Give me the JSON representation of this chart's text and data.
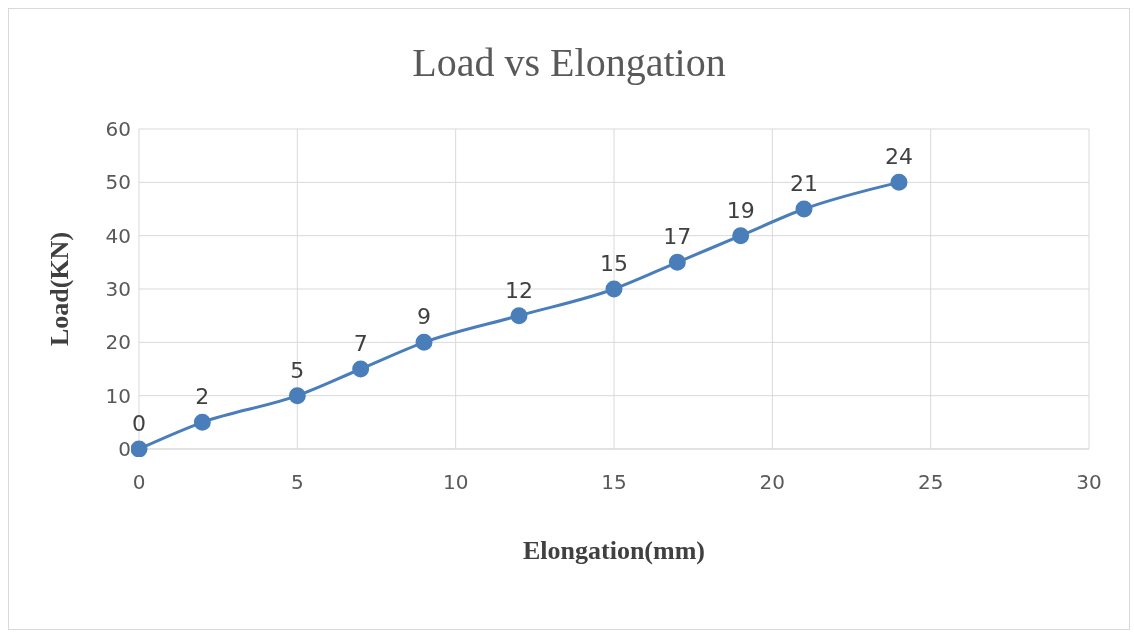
{
  "chart_data": {
    "type": "line",
    "title": "Load vs Elongation",
    "xlabel": "Elongation(mm)",
    "ylabel": "Load(KN)",
    "x": [
      0,
      2,
      5,
      7,
      9,
      12,
      15,
      17,
      19,
      21,
      24
    ],
    "values": [
      0,
      5,
      10,
      15,
      20,
      25,
      30,
      35,
      40,
      45,
      50
    ],
    "annotations": [
      {
        "text": "0",
        "x": 0,
        "y": 0
      },
      {
        "text": "2",
        "x": 2,
        "y": 5
      },
      {
        "text": "5",
        "x": 5,
        "y": 10
      },
      {
        "text": "7",
        "x": 7,
        "y": 15
      },
      {
        "text": "9",
        "x": 9,
        "y": 20
      },
      {
        "text": "12",
        "x": 12,
        "y": 25
      },
      {
        "text": "15",
        "x": 15,
        "y": 30
      },
      {
        "text": "17",
        "x": 17,
        "y": 35
      },
      {
        "text": "19",
        "x": 19,
        "y": 40
      },
      {
        "text": "21",
        "x": 21,
        "y": 45
      },
      {
        "text": "24",
        "x": 24,
        "y": 50
      }
    ],
    "color": "#4a7ebb",
    "xlim": [
      0,
      30
    ],
    "xticks": [
      0,
      5,
      10,
      15,
      20,
      25,
      30
    ],
    "ylim": [
      0,
      60
    ],
    "yticks": [
      0,
      10,
      20,
      30,
      40,
      50,
      60
    ],
    "grid": true,
    "marker": "circle"
  }
}
